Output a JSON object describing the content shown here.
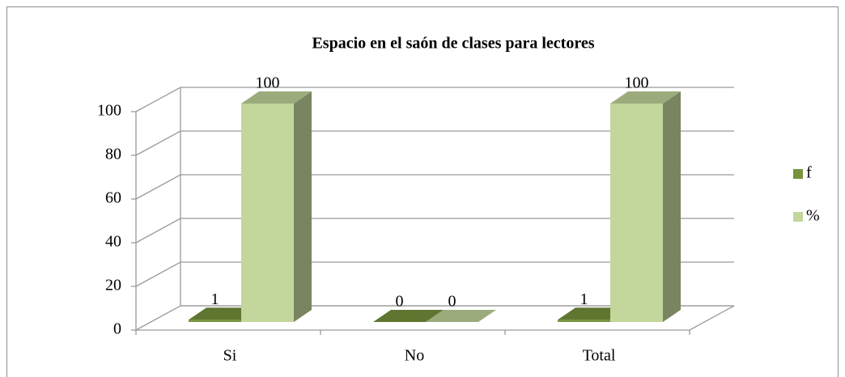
{
  "chart_data": {
    "type": "bar3d",
    "title": "Espacio en el saón de clases para lectores",
    "categories": [
      "Si",
      "No",
      "Total"
    ],
    "series": [
      {
        "name": "f",
        "color": "#77933c",
        "values": [
          1,
          0,
          1
        ]
      },
      {
        "name": "%",
        "color": "#c3d69b",
        "values": [
          100,
          0,
          100
        ]
      }
    ],
    "ylim": [
      0,
      100
    ],
    "yticks": [
      0,
      20,
      40,
      60,
      80,
      100
    ],
    "grid": true,
    "legend": "right"
  }
}
